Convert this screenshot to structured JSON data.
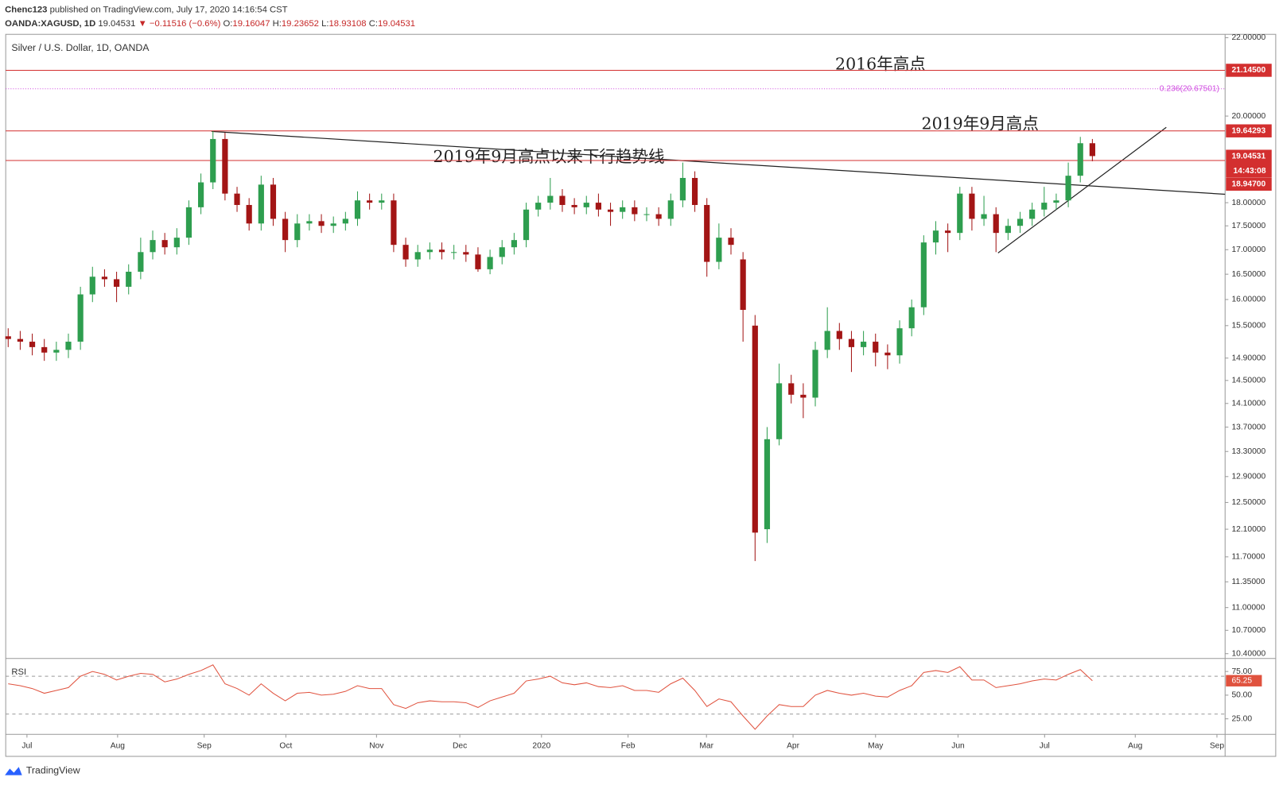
{
  "header": {
    "publisher": "Chenc123",
    "published": "published on TradingView.com, July 17, 2020 14:16:54 CST",
    "ticker": "OANDA:XAGUSD, 1D",
    "price": "19.04531",
    "change": "▼ −0.11516 (−0.6%)",
    "ohlc": [
      {
        "k": "O:",
        "v": "19.16047"
      },
      {
        "k": "H:",
        "v": "19.23652"
      },
      {
        "k": "L:",
        "v": "18.93108"
      },
      {
        "k": "C:",
        "v": "19.04531"
      }
    ]
  },
  "footer": "TradingView",
  "chart_data": {
    "type": "candlestick",
    "title": "Silver / U.S. Dollar, 1D, OANDA",
    "log": true,
    "grid": false,
    "up_color": "#2e9e4f",
    "down_color": "#a31515",
    "ylim": [
      10.35,
      22.09
    ],
    "yticks": [
      {
        "value": 22,
        "label": "22.00000"
      },
      {
        "value": 20,
        "label": "20.00000"
      },
      {
        "value": 18,
        "label": "18.00000"
      },
      {
        "value": 17.5,
        "label": "17.50000"
      },
      {
        "value": 17,
        "label": "17.00000"
      },
      {
        "value": 16.5,
        "label": "16.50000"
      },
      {
        "value": 16,
        "label": "16.00000"
      },
      {
        "value": 15.5,
        "label": "15.50000"
      },
      {
        "value": 14.9,
        "label": "14.90000"
      },
      {
        "value": 14.5,
        "label": "14.50000"
      },
      {
        "value": 14.1,
        "label": "14.10000"
      },
      {
        "value": 13.7,
        "label": "13.70000"
      },
      {
        "value": 13.3,
        "label": "13.30000"
      },
      {
        "value": 12.9,
        "label": "12.90000"
      },
      {
        "value": 12.5,
        "label": "12.50000"
      },
      {
        "value": 12.1,
        "label": "12.10000"
      },
      {
        "value": 11.7,
        "label": "11.70000"
      },
      {
        "value": 11.35,
        "label": "11.35000"
      },
      {
        "value": 11,
        "label": "11.00000"
      },
      {
        "value": 10.7,
        "label": "10.70000"
      },
      {
        "value": 10.4,
        "label": "10.40000"
      }
    ],
    "x_labels": [
      "Jul",
      "Aug",
      "Sep",
      "Oct",
      "Nov",
      "Dec",
      "2020",
      "Feb",
      "Mar",
      "Apr",
      "May",
      "Jun",
      "Jul",
      "Aug",
      "Sep"
    ],
    "open": [
      15.3,
      15.25,
      15.2,
      15.1,
      15.0,
      15.05,
      15.2,
      16.1,
      16.45,
      16.4,
      16.25,
      16.55,
      16.95,
      17.2,
      17.05,
      17.25,
      17.9,
      18.45,
      19.45,
      18.2,
      17.95,
      17.55,
      18.4,
      17.65,
      17.2,
      17.55,
      17.6,
      17.5,
      17.55,
      17.65,
      18.05,
      18.0,
      18.05,
      17.1,
      16.8,
      16.95,
      17.0,
      16.95,
      16.95,
      16.9,
      16.6,
      16.85,
      17.05,
      17.2,
      17.85,
      18.0,
      18.15,
      17.95,
      17.9,
      18.0,
      17.85,
      17.8,
      17.9,
      17.75,
      17.75,
      17.65,
      18.05,
      18.55,
      17.95,
      16.75,
      17.25,
      16.8,
      15.5,
      12.1,
      13.5,
      14.45,
      14.25,
      14.2,
      15.05,
      15.4,
      15.25,
      15.1,
      15.2,
      15.0,
      14.95,
      15.45,
      15.85,
      17.15,
      17.4,
      17.35,
      18.2,
      17.65,
      17.75,
      17.35,
      17.5,
      17.65,
      17.85,
      18.0,
      18.05,
      18.6,
      19.35
    ],
    "high": [
      15.45,
      15.4,
      15.35,
      15.25,
      15.2,
      15.35,
      16.25,
      16.65,
      16.6,
      16.55,
      16.7,
      17.25,
      17.4,
      17.35,
      17.45,
      18.05,
      18.65,
      19.64,
      19.6,
      18.35,
      18.1,
      18.6,
      18.55,
      17.8,
      17.75,
      17.75,
      17.75,
      17.7,
      17.8,
      18.25,
      18.2,
      18.2,
      18.2,
      17.25,
      17.1,
      17.15,
      17.15,
      17.1,
      17.1,
      17.05,
      17.0,
      17.2,
      17.35,
      18.0,
      18.15,
      18.55,
      18.3,
      18.1,
      18.15,
      18.2,
      18.0,
      18.05,
      18.05,
      17.9,
      17.9,
      18.2,
      18.9,
      18.7,
      18.1,
      17.55,
      17.45,
      16.95,
      15.7,
      13.7,
      14.8,
      14.6,
      14.45,
      15.2,
      15.85,
      15.55,
      15.4,
      15.4,
      15.35,
      15.15,
      15.6,
      16.0,
      17.3,
      17.6,
      17.55,
      18.35,
      18.35,
      18.15,
      17.9,
      17.65,
      17.8,
      18.0,
      18.35,
      18.2,
      18.9,
      19.5,
      19.45
    ],
    "low": [
      15.1,
      15.05,
      14.95,
      14.85,
      14.85,
      14.9,
      15.05,
      15.95,
      16.25,
      15.95,
      16.1,
      16.4,
      16.8,
      16.9,
      16.9,
      17.1,
      17.75,
      18.3,
      18.05,
      17.8,
      17.4,
      17.4,
      17.5,
      16.95,
      17.05,
      17.4,
      17.35,
      17.35,
      17.4,
      17.5,
      17.85,
      17.85,
      16.95,
      16.65,
      16.65,
      16.8,
      16.8,
      16.8,
      16.75,
      16.55,
      16.5,
      16.7,
      16.9,
      17.05,
      17.7,
      17.85,
      17.8,
      17.75,
      17.75,
      17.7,
      17.5,
      17.65,
      17.6,
      17.6,
      17.5,
      17.5,
      17.9,
      17.8,
      16.45,
      16.6,
      16.9,
      15.2,
      11.64,
      11.9,
      13.4,
      14.1,
      13.85,
      14.05,
      14.9,
      15.05,
      14.65,
      14.95,
      14.75,
      14.7,
      14.8,
      15.3,
      15.7,
      16.9,
      16.95,
      17.2,
      17.4,
      17.5,
      16.95,
      17.2,
      17.35,
      17.5,
      17.7,
      17.85,
      17.9,
      18.45,
      18.93
    ],
    "close": [
      15.25,
      15.2,
      15.1,
      15.0,
      15.05,
      15.2,
      16.1,
      16.45,
      16.4,
      16.25,
      16.55,
      16.95,
      17.2,
      17.05,
      17.25,
      17.9,
      18.45,
      19.45,
      18.2,
      17.95,
      17.55,
      18.4,
      17.65,
      17.2,
      17.55,
      17.6,
      17.5,
      17.55,
      17.65,
      18.05,
      18.0,
      18.05,
      17.1,
      16.8,
      16.95,
      17.0,
      16.95,
      16.95,
      16.9,
      16.6,
      16.85,
      17.05,
      17.2,
      17.85,
      18.0,
      18.15,
      17.95,
      17.9,
      18.0,
      17.85,
      17.8,
      17.9,
      17.75,
      17.75,
      17.65,
      18.05,
      18.55,
      17.95,
      16.75,
      17.25,
      17.1,
      15.8,
      12.05,
      13.5,
      14.45,
      14.25,
      14.2,
      15.05,
      15.4,
      15.25,
      15.1,
      15.2,
      15.0,
      14.95,
      15.45,
      15.85,
      17.15,
      17.4,
      17.35,
      18.2,
      17.65,
      17.75,
      17.35,
      17.5,
      17.65,
      17.85,
      18.0,
      18.05,
      18.6,
      19.35,
      19.05
    ],
    "levels": [
      {
        "value": 21.145,
        "label": "21.14500"
      },
      {
        "value": 19.64293,
        "label": "19.64293"
      },
      {
        "value": 18.947,
        "label": "18.94700"
      }
    ],
    "fib": {
      "value": 20.67501,
      "label": "0.236(20.67501)"
    },
    "last": {
      "value": 19.04531,
      "label": "19.04531"
    },
    "countdown": "14:43:08",
    "annotations": [
      "2016年高点",
      "2019年9月高点",
      "2019年9月高点以来下行趋势线"
    ],
    "rsi": {
      "title": "RSI",
      "color": "#e0523e",
      "ylim": [
        8.6,
        87.9
      ],
      "bands": [
        70,
        30
      ],
      "yticks": [
        {
          "value": 75,
          "label": "75.00"
        },
        {
          "value": 50,
          "label": "50.00"
        },
        {
          "value": 25,
          "label": "25.00"
        }
      ],
      "values": [
        62,
        60,
        57,
        52,
        55,
        58,
        70,
        75,
        72,
        66,
        70,
        73,
        72,
        64,
        67,
        72,
        76,
        82,
        62,
        57,
        50,
        62,
        52,
        44,
        52,
        53,
        50,
        51,
        54,
        60,
        57,
        57,
        40,
        36,
        42,
        44,
        43,
        43,
        42,
        37,
        44,
        48,
        52,
        65,
        67,
        70,
        63,
        61,
        63,
        59,
        58,
        60,
        55,
        55,
        53,
        62,
        68,
        55,
        38,
        46,
        43,
        28,
        14,
        28,
        40,
        38,
        38,
        50,
        55,
        52,
        50,
        52,
        49,
        48,
        55,
        60,
        74,
        76,
        74,
        80,
        66,
        66,
        58,
        60,
        62,
        65,
        67,
        66,
        72,
        77,
        65.25
      ]
    }
  }
}
